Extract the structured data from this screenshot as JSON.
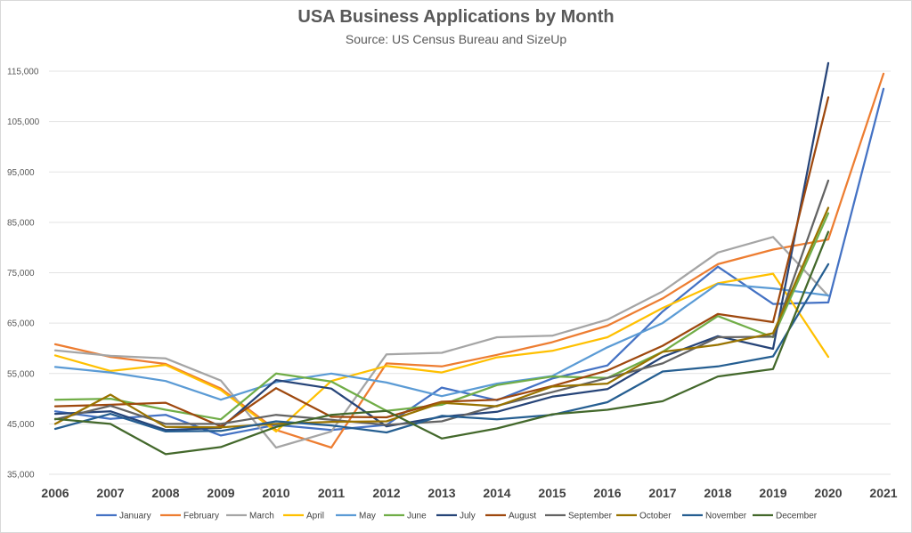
{
  "chart_data": {
    "type": "line",
    "title": "USA Business Applications by Month",
    "subtitle": "Source: US Census Bureau and SizeUp",
    "xlabel": "",
    "ylabel": "",
    "x": [
      "2006",
      "2007",
      "2008",
      "2009",
      "2010",
      "2011",
      "2012",
      "2013",
      "2014",
      "2015",
      "2016",
      "2017",
      "2018",
      "2019",
      "2020",
      "2021"
    ],
    "ylim": [
      35000,
      120000
    ],
    "yticks": [
      35000,
      45000,
      55000,
      65000,
      75000,
      85000,
      95000,
      105000,
      115000
    ],
    "ytick_labels": [
      "35,000",
      "45,000",
      "55,000",
      "65,000",
      "75,000",
      "85,000",
      "95,000",
      "105,000",
      "115,000"
    ],
    "grid": true,
    "legend_position": "bottom",
    "series": [
      {
        "name": "January",
        "color": "#4472C4",
        "values": [
          47500,
          46000,
          46800,
          42700,
          44800,
          43800,
          44800,
          52200,
          49700,
          54000,
          56600,
          67300,
          76200,
          68800,
          69100,
          111500
        ]
      },
      {
        "name": "February",
        "color": "#ED7D31",
        "values": [
          60800,
          58300,
          56900,
          52000,
          43800,
          40300,
          57000,
          56400,
          58700,
          61200,
          64500,
          69900,
          76700,
          79600,
          81600,
          114500
        ]
      },
      {
        "name": "March",
        "color": "#A5A5A5",
        "values": [
          59600,
          58500,
          58000,
          53600,
          40300,
          43500,
          58800,
          59100,
          62200,
          62500,
          65700,
          71300,
          79000,
          82100,
          70400,
          null
        ]
      },
      {
        "name": "April",
        "color": "#FFC000",
        "values": [
          58600,
          55500,
          56700,
          51700,
          43500,
          53500,
          56500,
          55200,
          58200,
          59500,
          62200,
          68000,
          72900,
          74800,
          58300,
          null
        ]
      },
      {
        "name": "May",
        "color": "#5B9BD5",
        "values": [
          56300,
          55200,
          53500,
          49800,
          53300,
          55000,
          53200,
          50500,
          53000,
          54500,
          60200,
          65000,
          72800,
          71900,
          70500,
          null
        ]
      },
      {
        "name": "June",
        "color": "#70AD47",
        "values": [
          49800,
          50000,
          47800,
          45900,
          55000,
          53400,
          47600,
          48800,
          52700,
          54400,
          54100,
          59300,
          66400,
          62200,
          86800,
          null
        ]
      },
      {
        "name": "July",
        "color": "#264478",
        "values": [
          47000,
          47500,
          43800,
          44200,
          53700,
          52000,
          44500,
          46400,
          47400,
          50400,
          51900,
          58300,
          62400,
          59900,
          116600,
          null
        ]
      },
      {
        "name": "August",
        "color": "#9E480E",
        "values": [
          48500,
          48800,
          49200,
          44500,
          52100,
          46400,
          46300,
          49400,
          49800,
          52500,
          55600,
          60500,
          66800,
          65200,
          109800,
          null
        ]
      },
      {
        "name": "September",
        "color": "#636363",
        "values": [
          45900,
          48600,
          45000,
          45000,
          46800,
          45800,
          44800,
          45500,
          48600,
          51300,
          54100,
          57000,
          62200,
          62300,
          93300,
          null
        ]
      },
      {
        "name": "October",
        "color": "#997300",
        "values": [
          45000,
          50800,
          44400,
          44300,
          45000,
          45400,
          45500,
          49200,
          48500,
          52400,
          53000,
          59300,
          60700,
          63000,
          87900,
          null
        ]
      },
      {
        "name": "November",
        "color": "#255E91",
        "values": [
          44000,
          47000,
          43500,
          43600,
          45500,
          44700,
          43300,
          46600,
          45900,
          46800,
          49300,
          55400,
          56400,
          58400,
          76700,
          null
        ]
      },
      {
        "name": "December",
        "color": "#43682B",
        "values": [
          46000,
          45000,
          39000,
          40400,
          44400,
          46800,
          47600,
          42100,
          44100,
          46900,
          47800,
          49500,
          54400,
          55900,
          83100,
          null
        ]
      }
    ]
  }
}
